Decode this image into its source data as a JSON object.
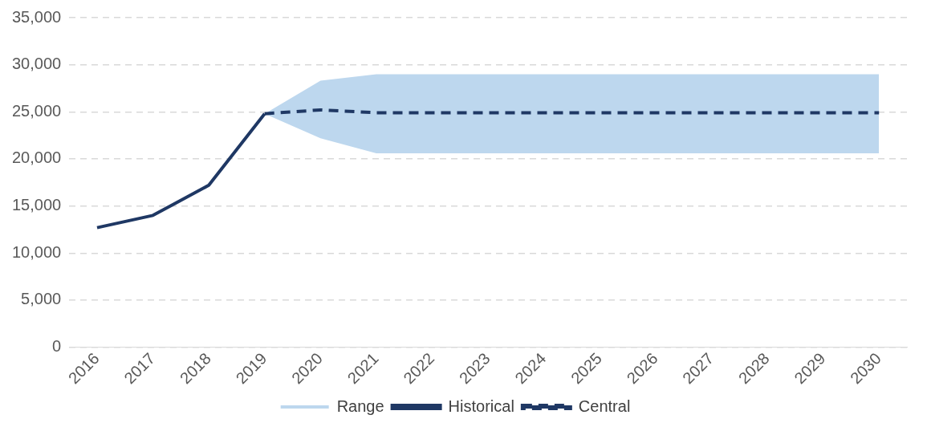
{
  "chart_data": {
    "type": "line",
    "categories": [
      "2016",
      "2017",
      "2018",
      "2019",
      "2020",
      "2021",
      "2022",
      "2023",
      "2024",
      "2025",
      "2026",
      "2027",
      "2028",
      "2029",
      "2030"
    ],
    "series": [
      {
        "name": "Range",
        "type": "area",
        "color": "#bdd7ee",
        "values": [
          null,
          null,
          null,
          null,
          null,
          null,
          null,
          null,
          null,
          null,
          null,
          null,
          null,
          null,
          null
        ],
        "lower": [
          null,
          null,
          null,
          24800,
          22200,
          20600,
          20600,
          20600,
          20600,
          20600,
          20600,
          20600,
          20600,
          20600,
          20600
        ],
        "upper": [
          null,
          null,
          null,
          24800,
          28300,
          29000,
          29000,
          29000,
          29000,
          29000,
          29000,
          29000,
          29000,
          29000,
          29000
        ]
      },
      {
        "name": "Historical",
        "type": "line",
        "color": "#1f3864",
        "line_style": "solid",
        "values": [
          12700,
          14000,
          17200,
          24800,
          null,
          null,
          null,
          null,
          null,
          null,
          null,
          null,
          null,
          null,
          null
        ]
      },
      {
        "name": "Central",
        "type": "line",
        "color": "#1f3864",
        "line_style": "dashed",
        "values": [
          null,
          null,
          null,
          24800,
          25200,
          24900,
          24900,
          24900,
          24900,
          24900,
          24900,
          24900,
          24900,
          24900,
          24900
        ]
      }
    ],
    "ylim": [
      0,
      35000
    ],
    "yticks": [
      {
        "value": 0,
        "label": "0"
      },
      {
        "value": 5000,
        "label": "5,000"
      },
      {
        "value": 10000,
        "label": "10,000"
      },
      {
        "value": 15000,
        "label": "15,000"
      },
      {
        "value": 20000,
        "label": "20,000"
      },
      {
        "value": 25000,
        "label": "25,000"
      },
      {
        "value": 30000,
        "label": "30,000"
      },
      {
        "value": 35000,
        "label": "35,000"
      }
    ],
    "grid": "y",
    "legend": "bottom",
    "marker": "none"
  }
}
